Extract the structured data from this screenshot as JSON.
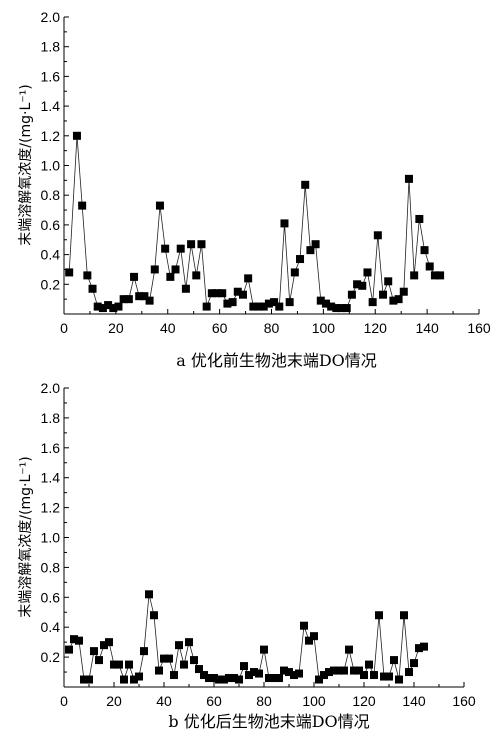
{
  "chart_data": [
    {
      "type": "line",
      "caption": "a 优化前生物池末端DO情况",
      "ylabel": "末端溶解氧浓度/(mg·L⁻¹)",
      "xlabel": "",
      "xlim": [
        0,
        160
      ],
      "ylim": [
        0,
        2.0
      ],
      "xticks": [
        "0",
        "20",
        "40",
        "60",
        "80",
        "100",
        "120",
        "140",
        "160"
      ],
      "yticks": [
        "0.2",
        "0.4",
        "0.6",
        "0.8",
        "1.0",
        "1.2",
        "1.4",
        "1.6",
        "1.8",
        "2.0"
      ],
      "grid": false,
      "marker": "square",
      "x": [
        2,
        5,
        7,
        9,
        11,
        13,
        15,
        17,
        19,
        21,
        23,
        25,
        27,
        29,
        31,
        33,
        35,
        37,
        39,
        41,
        43,
        45,
        47,
        49,
        51,
        53,
        55,
        57,
        59,
        61,
        63,
        65,
        67,
        69,
        71,
        73,
        75,
        77,
        79,
        81,
        83,
        85,
        87,
        89,
        91,
        93,
        95,
        97,
        99,
        101,
        103,
        105,
        107,
        109,
        111,
        113,
        115,
        117,
        119,
        121,
        123,
        125,
        127,
        129,
        131,
        133,
        135,
        137,
        139,
        141,
        143,
        145
      ],
      "y": [
        0.28,
        1.2,
        0.73,
        0.26,
        0.17,
        0.05,
        0.04,
        0.06,
        0.04,
        0.05,
        0.1,
        0.1,
        0.25,
        0.12,
        0.12,
        0.09,
        0.3,
        0.73,
        0.44,
        0.25,
        0.3,
        0.44,
        0.17,
        0.47,
        0.26,
        0.47,
        0.05,
        0.14,
        0.14,
        0.14,
        0.07,
        0.08,
        0.15,
        0.13,
        0.24,
        0.05,
        0.05,
        0.05,
        0.07,
        0.08,
        0.05,
        0.61,
        0.08,
        0.28,
        0.37,
        0.87,
        0.43,
        0.47,
        0.09,
        0.07,
        0.05,
        0.04,
        0.04,
        0.04,
        0.13,
        0.2,
        0.19,
        0.28,
        0.08,
        0.53,
        0.13,
        0.22,
        0.09,
        0.1,
        0.15,
        0.91,
        0.26,
        0.64,
        0.43,
        0.32,
        0.26,
        0.26
      ]
    },
    {
      "type": "line",
      "caption": "b 优化后生物池末端DO情况",
      "ylabel": "末端溶解氧浓度/(mg·L⁻¹)",
      "xlabel": "",
      "xlim": [
        0,
        160
      ],
      "ylim": [
        0,
        2.0
      ],
      "xticks": [
        "0",
        "20",
        "40",
        "60",
        "80",
        "100",
        "120",
        "140",
        "160"
      ],
      "yticks": [
        "0.2",
        "0.4",
        "0.6",
        "0.8",
        "1.0",
        "1.2",
        "1.4",
        "1.6",
        "1.8",
        "2.0"
      ],
      "grid": false,
      "marker": "square",
      "x": [
        2,
        4,
        6,
        8,
        10,
        12,
        14,
        16,
        18,
        20,
        22,
        24,
        26,
        28,
        30,
        32,
        34,
        36,
        38,
        40,
        42,
        44,
        46,
        48,
        50,
        52,
        54,
        56,
        58,
        60,
        62,
        64,
        66,
        68,
        70,
        72,
        74,
        76,
        78,
        80,
        82,
        84,
        86,
        88,
        90,
        92,
        94,
        96,
        98,
        100,
        102,
        104,
        106,
        108,
        110,
        112,
        114,
        116,
        118,
        120,
        122,
        124,
        126,
        128,
        130,
        132,
        134,
        136,
        138,
        140,
        142,
        144
      ],
      "y": [
        0.25,
        0.32,
        0.31,
        0.05,
        0.05,
        0.24,
        0.18,
        0.28,
        0.3,
        0.15,
        0.15,
        0.05,
        0.15,
        0.05,
        0.07,
        0.24,
        0.62,
        0.48,
        0.11,
        0.19,
        0.19,
        0.08,
        0.28,
        0.15,
        0.3,
        0.18,
        0.12,
        0.08,
        0.06,
        0.06,
        0.05,
        0.05,
        0.06,
        0.06,
        0.05,
        0.14,
        0.08,
        0.1,
        0.09,
        0.25,
        0.06,
        0.06,
        0.06,
        0.11,
        0.1,
        0.08,
        0.09,
        0.41,
        0.31,
        0.34,
        0.05,
        0.08,
        0.1,
        0.11,
        0.11,
        0.11,
        0.25,
        0.11,
        0.11,
        0.08,
        0.15,
        0.08,
        0.48,
        0.07,
        0.07,
        0.18,
        0.05,
        0.48,
        0.1,
        0.16,
        0.26,
        0.27
      ]
    }
  ]
}
